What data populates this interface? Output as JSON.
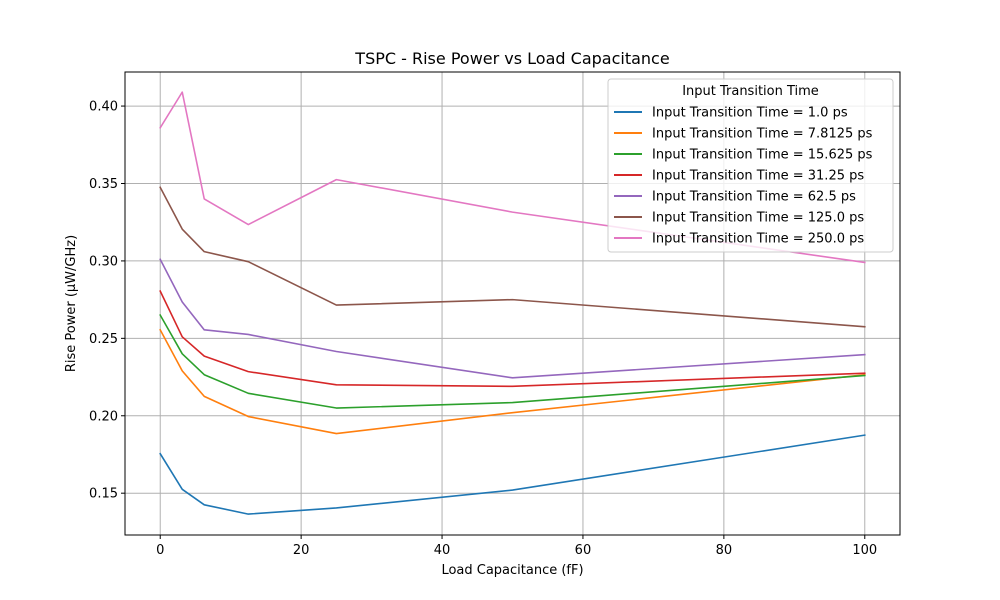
{
  "chart_data": {
    "type": "line",
    "title": "TSPC - Rise Power vs Load Capacitance",
    "xlabel": "Load Capacitance (fF)",
    "ylabel": "Rise Power (µW/GHz)",
    "xlim": [
      -5,
      105
    ],
    "ylim": [
      0.123,
      0.422
    ],
    "xticks": [
      0,
      20,
      40,
      60,
      80,
      100
    ],
    "yticks": [
      0.15,
      0.2,
      0.25,
      0.3,
      0.35,
      0.4
    ],
    "xtick_labels": [
      "0",
      "20",
      "40",
      "60",
      "80",
      "100"
    ],
    "ytick_labels": [
      "0.15",
      "0.20",
      "0.25",
      "0.30",
      "0.35",
      "0.40"
    ],
    "grid": true,
    "legend": {
      "title": "Input Transition Time",
      "placement": "top-right"
    },
    "x": [
      0.0,
      3.125,
      6.25,
      12.5,
      25.0,
      50.0,
      100.0
    ],
    "series": [
      {
        "name": "Input Transition Time = 1.0 ps",
        "color": "#1f77b4",
        "values": [
          0.1755,
          0.1525,
          0.1425,
          0.1365,
          0.1405,
          0.152,
          0.1875
        ]
      },
      {
        "name": "Input Transition Time = 7.8125 ps",
        "color": "#ff7f0e",
        "values": [
          0.2555,
          0.229,
          0.2125,
          0.1995,
          0.1885,
          0.202,
          0.2265
        ]
      },
      {
        "name": "Input Transition Time = 15.625 ps",
        "color": "#2ca02c",
        "values": [
          0.265,
          0.24,
          0.2265,
          0.2145,
          0.205,
          0.2085,
          0.226
        ]
      },
      {
        "name": "Input Transition Time = 31.25 ps",
        "color": "#d62728",
        "values": [
          0.2805,
          0.251,
          0.2385,
          0.2285,
          0.22,
          0.219,
          0.2275
        ]
      },
      {
        "name": "Input Transition Time = 62.5 ps",
        "color": "#9467bd",
        "values": [
          0.301,
          0.2735,
          0.2555,
          0.2525,
          0.2415,
          0.2245,
          0.2395
        ]
      },
      {
        "name": "Input Transition Time = 125.0 ps",
        "color": "#8c564b",
        "values": [
          0.3475,
          0.3205,
          0.306,
          0.2995,
          0.2715,
          0.275,
          0.2575
        ]
      },
      {
        "name": "Input Transition Time = 250.0 ps",
        "color": "#e377c2",
        "values": [
          0.386,
          0.409,
          0.34,
          0.3235,
          0.3525,
          0.3315,
          0.299
        ]
      }
    ]
  }
}
